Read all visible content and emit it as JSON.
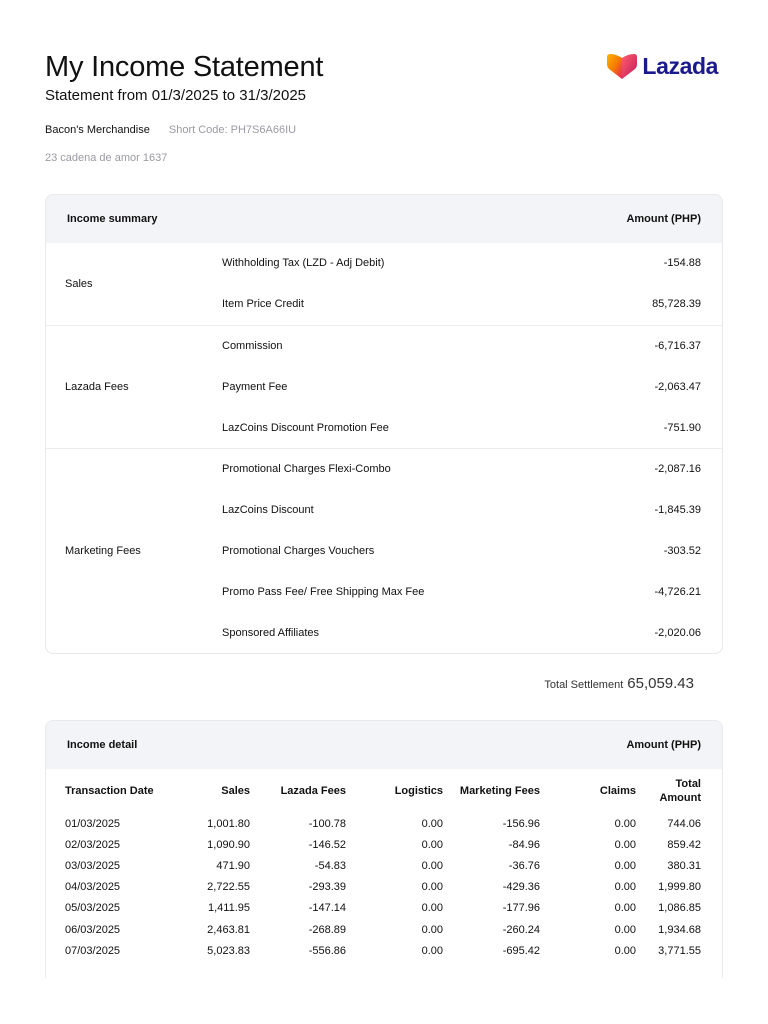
{
  "header": {
    "title": "My Income Statement",
    "subtitle": "Statement from 01/3/2025 to 31/3/2025",
    "seller_name": "Bacon's Merchandise",
    "short_code": "Short Code: PH7S6A66IU",
    "address": "23 cadena de amor 1637",
    "logo_text": "Lazada"
  },
  "colors": {
    "brand_navy": "#1a1a8e",
    "logo_orange": "#f57c00",
    "logo_pink": "#e91e63",
    "header_bg": "#f3f4f7"
  },
  "summary": {
    "heading": "Income summary",
    "amount_heading": "Amount (PHP)",
    "groups": [
      {
        "label": "Sales",
        "items": [
          {
            "name": "Withholding Tax (LZD - Adj Debit)",
            "amount": "-154.88"
          },
          {
            "name": "Item Price Credit",
            "amount": "85,728.39"
          }
        ]
      },
      {
        "label": "Lazada Fees",
        "items": [
          {
            "name": "Commission",
            "amount": "-6,716.37"
          },
          {
            "name": "Payment Fee",
            "amount": "-2,063.47"
          },
          {
            "name": "LazCoins Discount Promotion Fee",
            "amount": "-751.90"
          }
        ]
      },
      {
        "label": "Marketing Fees",
        "items": [
          {
            "name": "Promotional Charges Flexi-Combo",
            "amount": "-2,087.16"
          },
          {
            "name": "LazCoins Discount",
            "amount": "-1,845.39"
          },
          {
            "name": "Promotional Charges Vouchers",
            "amount": "-303.52"
          },
          {
            "name": "Promo Pass Fee/ Free Shipping Max Fee",
            "amount": "-4,726.21"
          },
          {
            "name": "Sponsored Affiliates",
            "amount": "-2,020.06"
          }
        ]
      }
    ],
    "total_label": "Total Settlement",
    "total_value": "65,059.43"
  },
  "detail": {
    "heading": "Income detail",
    "amount_heading": "Amount (PHP)",
    "columns": [
      "Transaction Date",
      "Sales",
      "Lazada Fees",
      "Logistics",
      "Marketing Fees",
      "Claims",
      "Total Amount"
    ],
    "rows": [
      [
        "01/03/2025",
        "1,001.80",
        "-100.78",
        "0.00",
        "-156.96",
        "0.00",
        "744.06"
      ],
      [
        "02/03/2025",
        "1,090.90",
        "-146.52",
        "0.00",
        "-84.96",
        "0.00",
        "859.42"
      ],
      [
        "03/03/2025",
        "471.90",
        "-54.83",
        "0.00",
        "-36.76",
        "0.00",
        "380.31"
      ],
      [
        "04/03/2025",
        "2,722.55",
        "-293.39",
        "0.00",
        "-429.36",
        "0.00",
        "1,999.80"
      ],
      [
        "05/03/2025",
        "1,411.95",
        "-147.14",
        "0.00",
        "-177.96",
        "0.00",
        "1,086.85"
      ],
      [
        "06/03/2025",
        "2,463.81",
        "-268.89",
        "0.00",
        "-260.24",
        "0.00",
        "1,934.68"
      ],
      [
        "07/03/2025",
        "5,023.83",
        "-556.86",
        "0.00",
        "-695.42",
        "0.00",
        "3,771.55"
      ]
    ]
  }
}
